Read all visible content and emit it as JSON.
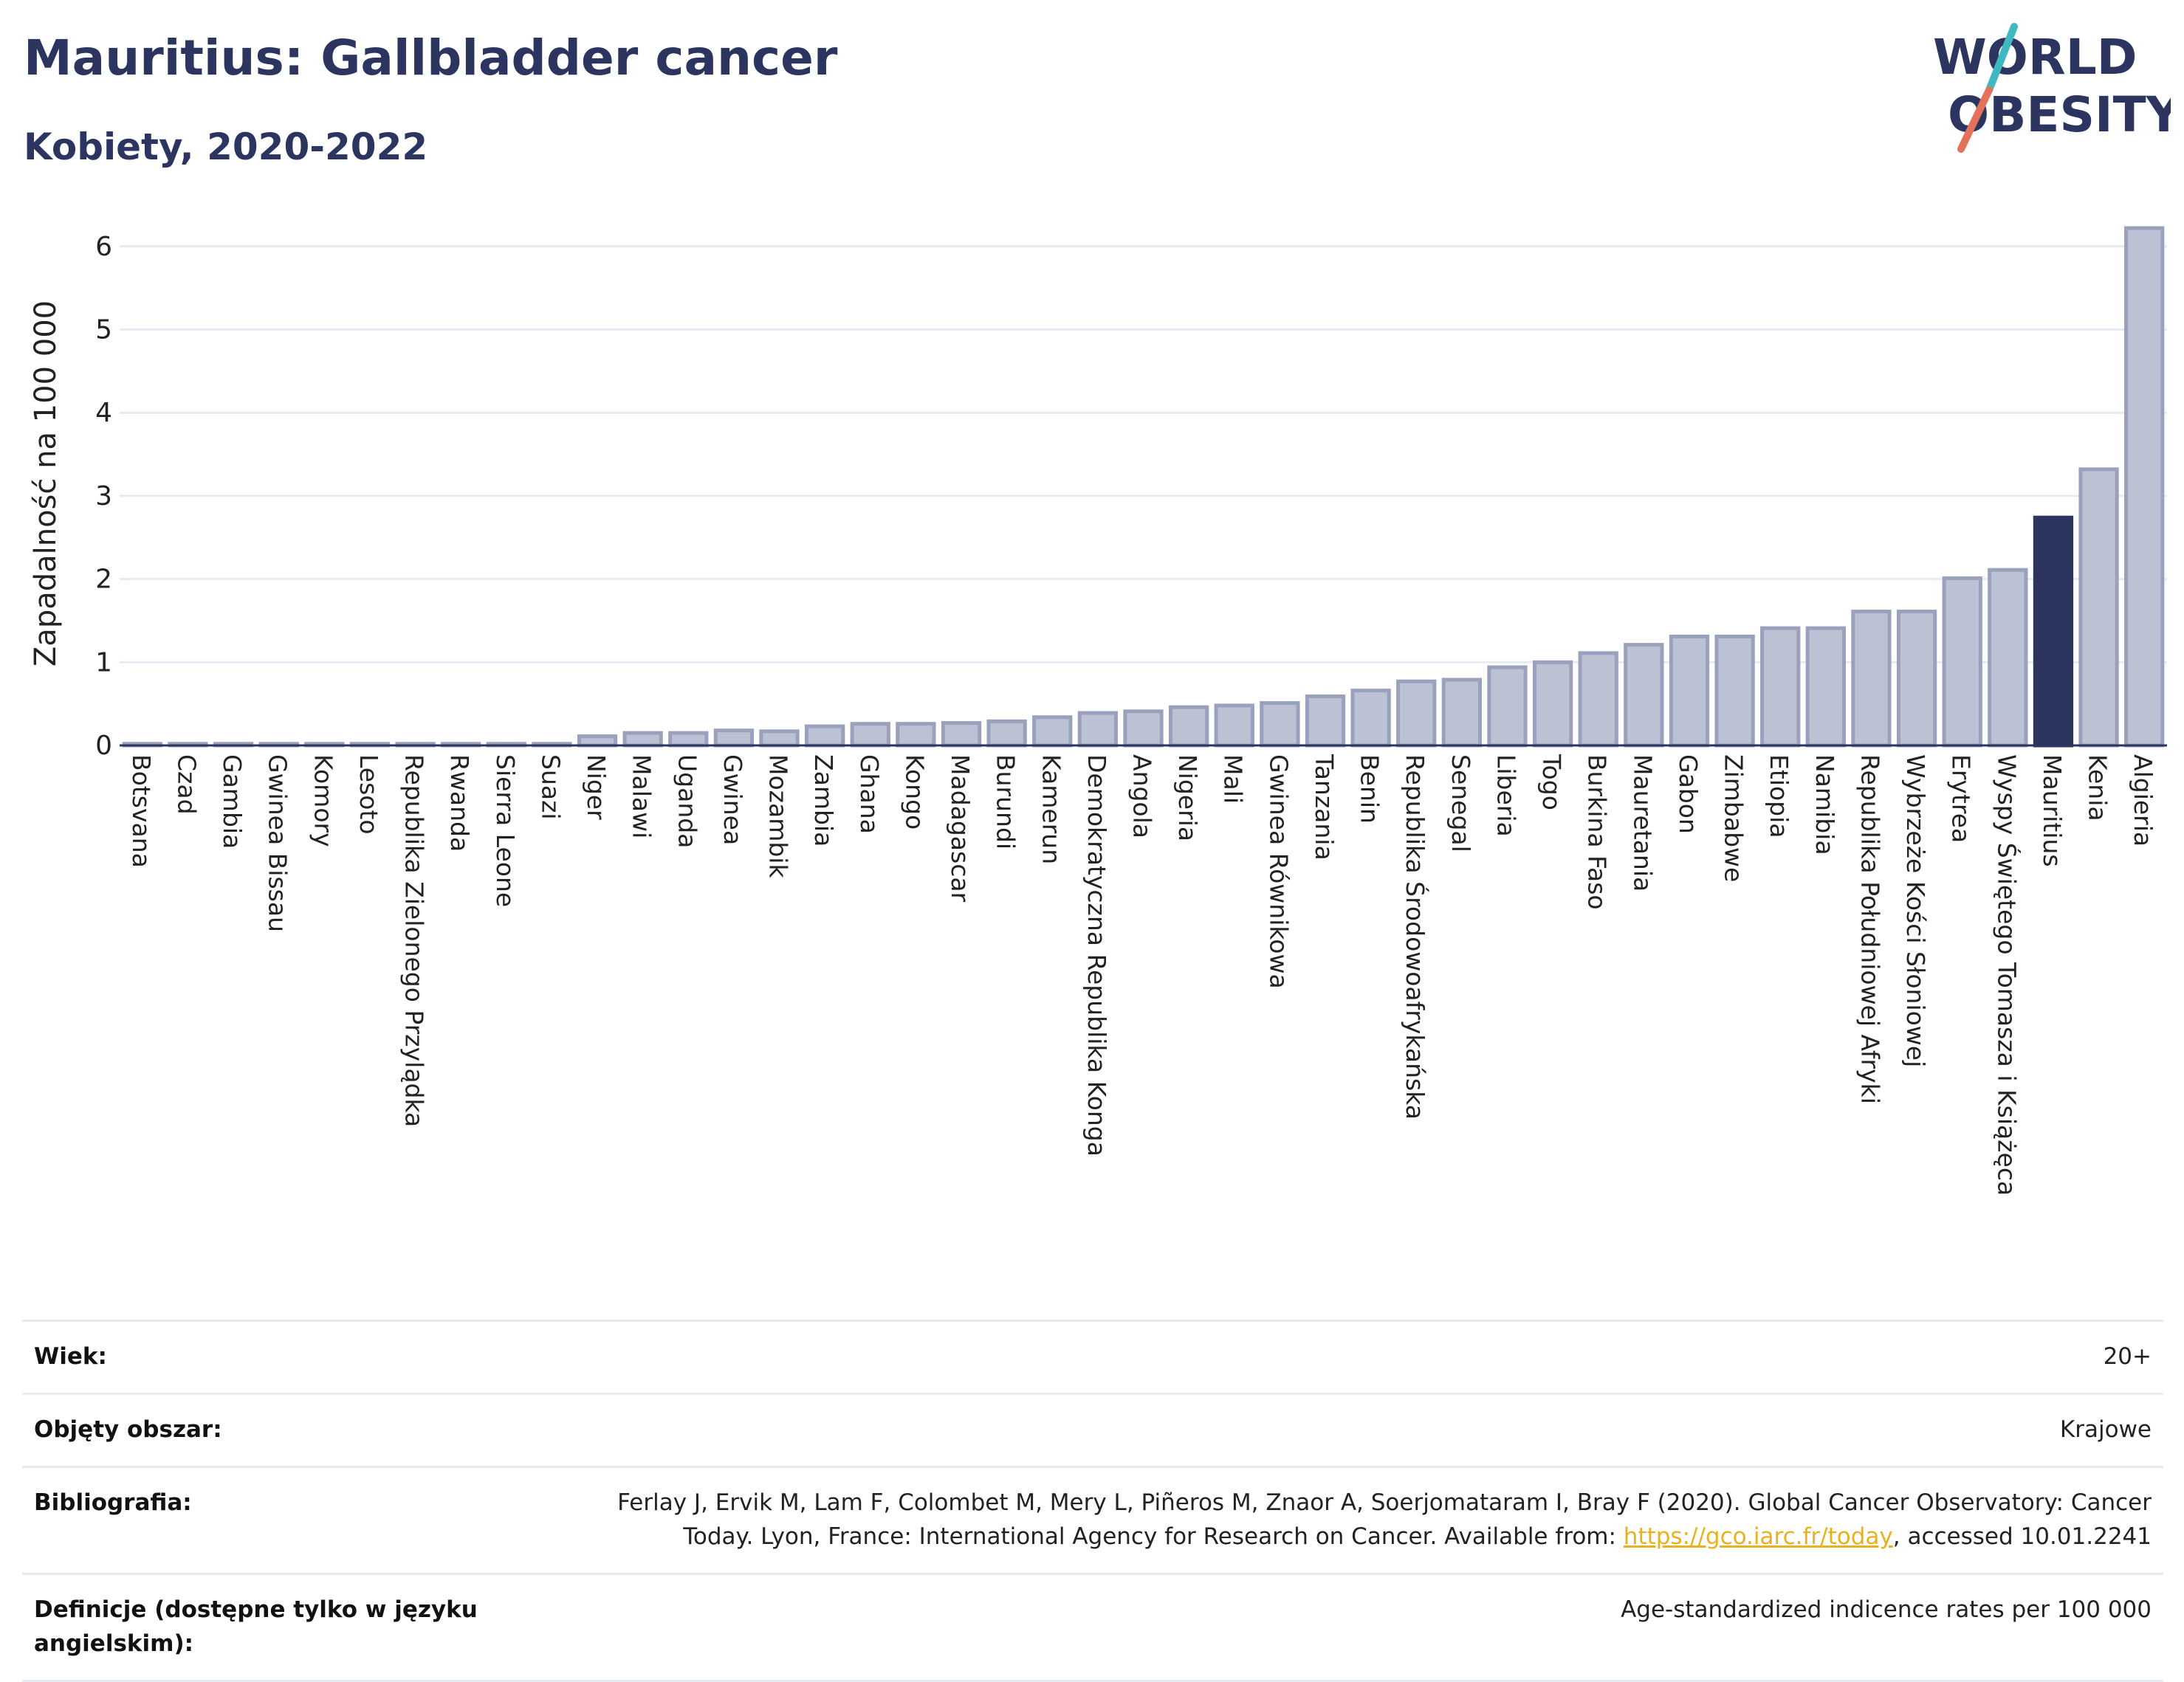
{
  "header": {
    "title": "Mauritius: Gallbladder cancer",
    "subtitle": "Kobiety, 2020-2022"
  },
  "logo": {
    "line1": "WORLD",
    "line2": "OBESITY",
    "colors": {
      "text": "#2b3560",
      "slash_teal": "#3fb8c1",
      "slash_coral": "#e2725b"
    }
  },
  "colors": {
    "bar_default": "#bcc2d3",
    "bar_stroke": "#9aa1bc",
    "bar_highlight": "#2b3560",
    "grid": "#e6ebf3",
    "axis": "#2b3560"
  },
  "chart_data": {
    "type": "bar",
    "ylabel": "Zapadalność na 100 000",
    "ylim": [
      0,
      6.3
    ],
    "yticks": [
      0,
      1,
      2,
      3,
      4,
      5,
      6
    ],
    "grid": true,
    "highlight": "Mauritius",
    "categories": [
      "Botsvana",
      "Czad",
      "Gambia",
      "Gwinea Bissau",
      "Komory",
      "Lesoto",
      "Republika Zielonego Przylądka",
      "Rwanda",
      "Sierra Leone",
      "Suazi",
      "Niger",
      "Malawi",
      "Uganda",
      "Gwinea",
      "Mozambik",
      "Zambia",
      "Ghana",
      "Kongo",
      "Madagascar",
      "Burundi",
      "Kamerun",
      "Demokratyczna Republika Konga",
      "Angola",
      "Nigeria",
      "Mali",
      "Gwinea Równikowa",
      "Tanzania",
      "Benin",
      "Republika Środowoafrykańska",
      "Senegal",
      "Liberia",
      "Togo",
      "Burkina Faso",
      "Mauretania",
      "Gabon",
      "Zimbabwe",
      "Etiopia",
      "Namibia",
      "Republika Południowej Afryki",
      "Wybrzeże Kości Słoniowej",
      "Erytrea",
      "Wyspy Świętego Tomasza i Książęca",
      "Mauritius",
      "Kenia",
      "Algieria"
    ],
    "values": [
      0.02,
      0.02,
      0.02,
      0.02,
      0.02,
      0.02,
      0.02,
      0.02,
      0.02,
      0.02,
      0.11,
      0.15,
      0.15,
      0.18,
      0.17,
      0.23,
      0.26,
      0.26,
      0.27,
      0.29,
      0.34,
      0.39,
      0.41,
      0.46,
      0.48,
      0.51,
      0.59,
      0.66,
      0.77,
      0.79,
      0.94,
      1.0,
      1.11,
      1.21,
      1.31,
      1.31,
      1.41,
      1.41,
      1.61,
      1.61,
      2.01,
      2.11,
      2.74,
      3.32,
      6.22
    ]
  },
  "meta": {
    "rows": [
      {
        "label": "Wiek:",
        "value": "20+"
      },
      {
        "label": "Objęty obszar:",
        "value": "Krajowe"
      },
      {
        "label": "Bibliografia:",
        "value_before": "Ferlay J, Ervik M, Lam F, Colombet M, Mery L, Piñeros M, Znaor A, Soerjomataram I, Bray F (2020). Global Cancer Observatory: Cancer Today. Lyon, France: International Agency for Research on Cancer. Available from: ",
        "link": "https://gco.iarc.fr/today",
        "value_after": ", accessed 10.01.2241"
      },
      {
        "label": "Definicje (dostępne tylko w języku angielskim):",
        "value": "Age-standardized indicence rates per 100 000"
      }
    ]
  }
}
